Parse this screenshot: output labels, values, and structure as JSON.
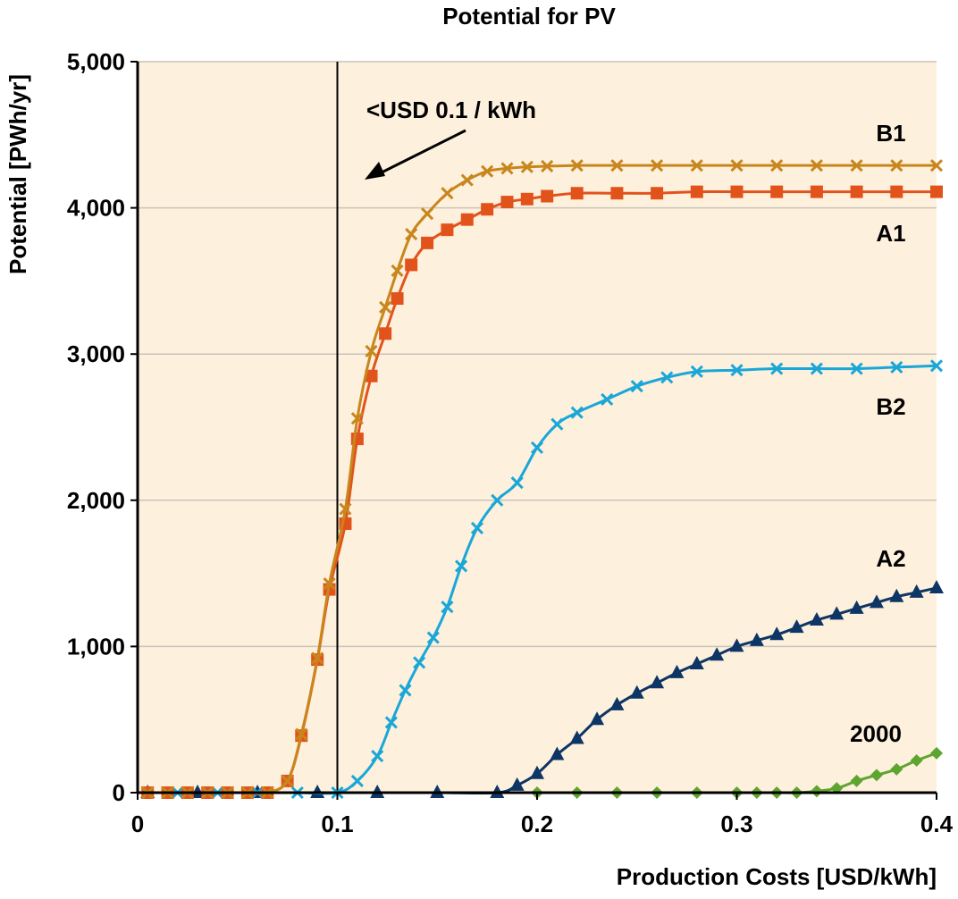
{
  "chart_data": {
    "type": "line",
    "title": "Potential for PV",
    "xlabel": "Production Costs [USD/kWh]",
    "ylabel": "Potential [PWh/yr]",
    "xlim": [
      0,
      0.4
    ],
    "ylim": [
      0,
      5000
    ],
    "x_ticks": [
      "0",
      "0.1",
      "0.2",
      "0.3",
      "0.4"
    ],
    "y_ticks": [
      "0",
      "1,000",
      "2,000",
      "3,000",
      "4,000",
      "5,000"
    ],
    "grid": "horizontal",
    "background_color": "#fdf0dd",
    "annotation": {
      "text": "<USD 0.1 / kWh",
      "reference_x": 0.1
    },
    "series": [
      {
        "name": "B1",
        "color": "#c8861c",
        "marker": "x",
        "x": [
          0.005,
          0.015,
          0.025,
          0.035,
          0.045,
          0.055,
          0.065,
          0.075,
          0.082,
          0.09,
          0.096,
          0.104,
          0.11,
          0.117,
          0.124,
          0.13,
          0.137,
          0.145,
          0.155,
          0.165,
          0.175,
          0.185,
          0.195,
          0.205,
          0.22,
          0.24,
          0.26,
          0.28,
          0.3,
          0.32,
          0.34,
          0.36,
          0.38,
          0.4
        ],
        "values": [
          0,
          0,
          0,
          0,
          0,
          0,
          0,
          80,
          400,
          920,
          1430,
          1940,
          2560,
          3020,
          3320,
          3570,
          3820,
          3960,
          4100,
          4190,
          4250,
          4270,
          4280,
          4285,
          4290,
          4290,
          4290,
          4290,
          4290,
          4290,
          4290,
          4290,
          4290,
          4290
        ]
      },
      {
        "name": "A1",
        "color": "#e2531c",
        "marker": "square",
        "x": [
          0.005,
          0.015,
          0.025,
          0.035,
          0.045,
          0.055,
          0.065,
          0.075,
          0.082,
          0.09,
          0.096,
          0.104,
          0.11,
          0.117,
          0.124,
          0.13,
          0.137,
          0.145,
          0.155,
          0.165,
          0.175,
          0.185,
          0.195,
          0.205,
          0.22,
          0.24,
          0.26,
          0.28,
          0.3,
          0.32,
          0.34,
          0.36,
          0.38,
          0.4
        ],
        "values": [
          0,
          0,
          0,
          0,
          0,
          0,
          0,
          80,
          390,
          910,
          1390,
          1840,
          2420,
          2850,
          3140,
          3380,
          3610,
          3760,
          3850,
          3920,
          3990,
          4040,
          4060,
          4080,
          4100,
          4100,
          4100,
          4110,
          4110,
          4110,
          4110,
          4110,
          4110,
          4110
        ]
      },
      {
        "name": "B2",
        "color": "#1aa7d8",
        "marker": "x",
        "x": [
          0.005,
          0.02,
          0.04,
          0.06,
          0.08,
          0.1,
          0.11,
          0.12,
          0.127,
          0.134,
          0.141,
          0.148,
          0.155,
          0.162,
          0.17,
          0.18,
          0.19,
          0.2,
          0.21,
          0.22,
          0.235,
          0.25,
          0.265,
          0.28,
          0.3,
          0.32,
          0.34,
          0.36,
          0.38,
          0.4
        ],
        "values": [
          0,
          0,
          0,
          0,
          0,
          0,
          80,
          250,
          480,
          700,
          890,
          1060,
          1270,
          1550,
          1810,
          2000,
          2120,
          2360,
          2520,
          2600,
          2690,
          2780,
          2840,
          2880,
          2890,
          2900,
          2900,
          2900,
          2910,
          2920
        ]
      },
      {
        "name": "A2",
        "color": "#0d3565",
        "marker": "triangle",
        "x": [
          0.005,
          0.03,
          0.06,
          0.09,
          0.12,
          0.15,
          0.18,
          0.19,
          0.2,
          0.21,
          0.22,
          0.23,
          0.24,
          0.25,
          0.26,
          0.27,
          0.28,
          0.29,
          0.3,
          0.31,
          0.32,
          0.33,
          0.34,
          0.35,
          0.36,
          0.37,
          0.38,
          0.39,
          0.4
        ],
        "values": [
          0,
          0,
          0,
          0,
          0,
          0,
          0,
          50,
          130,
          260,
          370,
          500,
          600,
          680,
          750,
          820,
          880,
          940,
          1000,
          1040,
          1080,
          1130,
          1180,
          1220,
          1260,
          1300,
          1340,
          1370,
          1400
        ]
      },
      {
        "name": "2000",
        "color": "#5ea52f",
        "marker": "diamond",
        "x": [
          0.2,
          0.22,
          0.24,
          0.26,
          0.28,
          0.3,
          0.31,
          0.32,
          0.33,
          0.34,
          0.35,
          0.36,
          0.37,
          0.38,
          0.39,
          0.4
        ],
        "values": [
          0,
          0,
          0,
          0,
          0,
          0,
          0,
          0,
          0,
          10,
          30,
          80,
          120,
          160,
          220,
          270
        ]
      }
    ]
  }
}
